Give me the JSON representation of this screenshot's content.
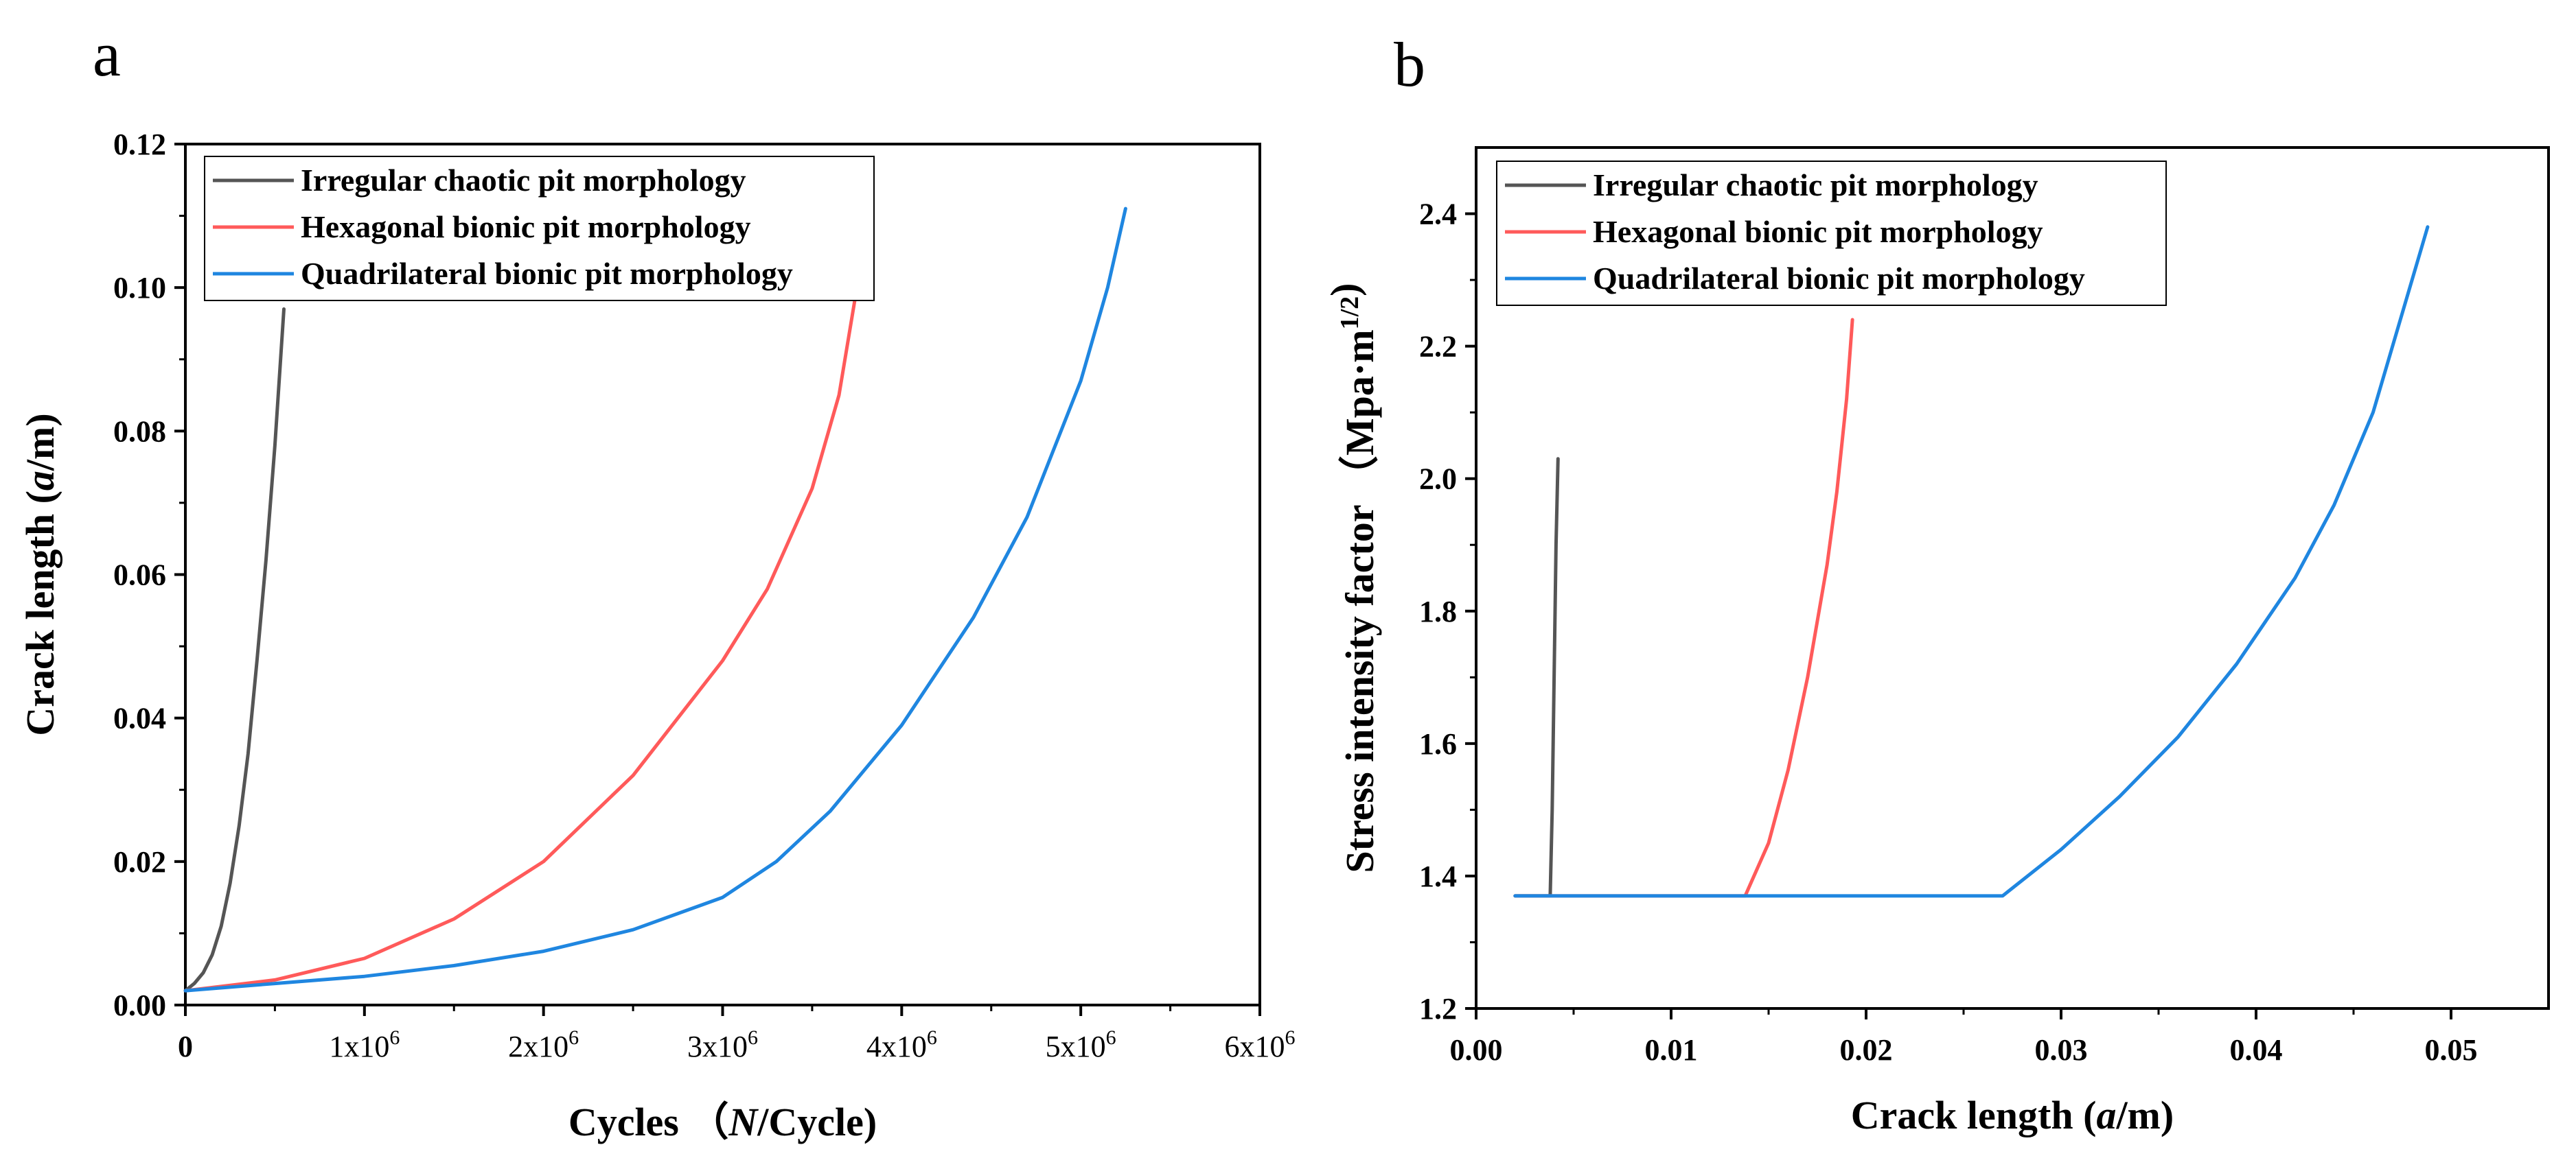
{
  "panels": {
    "a": "a",
    "b": "b"
  },
  "series_names": [
    "Irregular chaotic pit morphology",
    "Hexagonal bionic pit morphology",
    "Quadrilateral bionic pit morphology"
  ],
  "colors": {
    "black": "#555555",
    "red": "#ff5a5a",
    "blue": "#1f86e0",
    "axis": "#000000"
  },
  "chart_data": [
    {
      "type": "line",
      "panel": "a",
      "title": "",
      "xlabel": "Cycles (N/Cycle)",
      "ylabel": "Crack length (a/m)",
      "xlim": [
        0,
        6000000
      ],
      "ylim": [
        0,
        0.12
      ],
      "x_ticks": [
        0,
        1000000,
        2000000,
        3000000,
        4000000,
        5000000,
        6000000
      ],
      "x_tick_labels": [
        "0",
        "1x10^6",
        "2x10^6",
        "3x10^6",
        "4x10^6",
        "5x10^6",
        "6x10^6"
      ],
      "y_ticks": [
        0,
        0.02,
        0.04,
        0.06,
        0.08,
        0.1,
        0.12
      ],
      "y_tick_labels": [
        "0.00",
        "0.02",
        "0.04",
        "0.06",
        "0.08",
        "0.10",
        "0.12"
      ],
      "legend": "top-left",
      "series": [
        {
          "name": "Irregular chaotic pit morphology",
          "x": [
            0,
            50000,
            100000,
            150000,
            200000,
            250000,
            300000,
            350000,
            400000,
            450000,
            500000,
            550000
          ],
          "y": [
            0.002,
            0.003,
            0.0045,
            0.007,
            0.011,
            0.017,
            0.025,
            0.035,
            0.048,
            0.062,
            0.078,
            0.097
          ]
        },
        {
          "name": "Hexagonal bionic pit morphology",
          "x": [
            0,
            500000,
            1000000,
            1500000,
            2000000,
            2500000,
            3000000,
            3250000,
            3500000,
            3650000,
            3750000
          ],
          "y": [
            0.002,
            0.0035,
            0.0065,
            0.012,
            0.02,
            0.032,
            0.048,
            0.058,
            0.072,
            0.085,
            0.1
          ]
        },
        {
          "name": "Quadrilateral bionic pit morphology",
          "x": [
            0,
            500000,
            1000000,
            1500000,
            2000000,
            2500000,
            3000000,
            3300000,
            3600000,
            4000000,
            4400000,
            4700000,
            5000000,
            5150000,
            5250000
          ],
          "y": [
            0.002,
            0.003,
            0.004,
            0.0055,
            0.0075,
            0.0105,
            0.015,
            0.02,
            0.027,
            0.039,
            0.054,
            0.068,
            0.087,
            0.1,
            0.111
          ]
        }
      ]
    },
    {
      "type": "line",
      "panel": "b",
      "title": "",
      "xlabel": "Crack length (a/m)",
      "ylabel": "Stress intensity factor (Mpa·m^1/2)",
      "xlim": [
        0,
        0.055
      ],
      "ylim": [
        1.2,
        2.5
      ],
      "x_ticks": [
        0,
        0.01,
        0.02,
        0.03,
        0.04,
        0.05
      ],
      "x_tick_labels": [
        "0.00",
        "0.01",
        "0.02",
        "0.03",
        "0.04",
        "0.05"
      ],
      "y_ticks": [
        1.2,
        1.4,
        1.6,
        1.8,
        2.0,
        2.2,
        2.4
      ],
      "y_tick_labels": [
        "1.2",
        "1.4",
        "1.6",
        "1.8",
        "2.0",
        "2.2",
        "2.4"
      ],
      "legend": "top-left",
      "series": [
        {
          "name": "Irregular chaotic pit morphology",
          "x": [
            0.002,
            0.0038,
            0.0039,
            0.004,
            0.0041,
            0.0042
          ],
          "y": [
            1.37,
            1.37,
            1.5,
            1.7,
            1.9,
            2.03
          ]
        },
        {
          "name": "Hexagonal bionic pit morphology",
          "x": [
            0.002,
            0.0138,
            0.015,
            0.016,
            0.017,
            0.018,
            0.0185,
            0.019,
            0.0193
          ],
          "y": [
            1.37,
            1.37,
            1.45,
            1.56,
            1.7,
            1.87,
            1.98,
            2.12,
            2.24
          ]
        },
        {
          "name": "Quadrilateral bionic pit morphology",
          "x": [
            0.002,
            0.027,
            0.03,
            0.033,
            0.036,
            0.039,
            0.042,
            0.044,
            0.046,
            0.0475,
            0.0485,
            0.0488
          ],
          "y": [
            1.37,
            1.37,
            1.44,
            1.52,
            1.61,
            1.72,
            1.85,
            1.96,
            2.1,
            2.25,
            2.35,
            2.38
          ]
        }
      ]
    }
  ]
}
